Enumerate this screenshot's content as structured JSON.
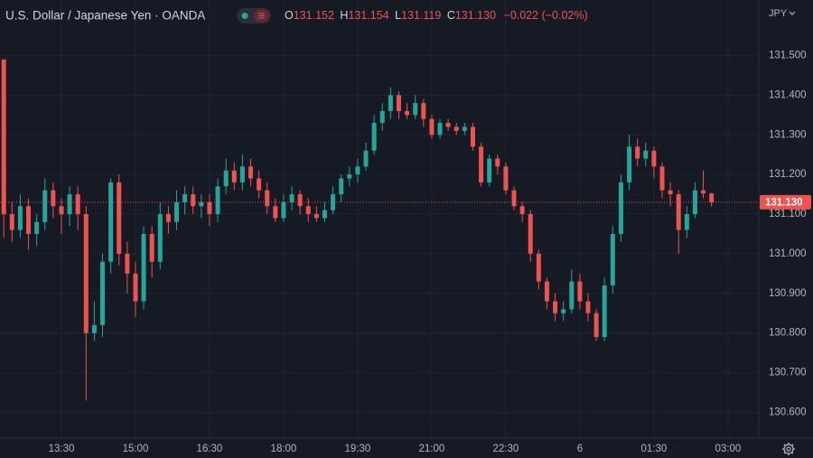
{
  "chart_data": {
    "type": "candlestick",
    "title": "U.S. Dollar / Japanese Yen · OANDA",
    "currency": "JPY",
    "legend": {
      "open_label": "O",
      "open": "131.152",
      "high_label": "H",
      "high": "131.154",
      "low_label": "L",
      "low": "131.119",
      "close_label": "C",
      "close": "131.130",
      "change": "−0.022 (−0.02%)"
    },
    "up_color": "#26a69a",
    "down_color": "#ef5350",
    "open": [
      131.49,
      131.1,
      131.06,
      131.12,
      131.05,
      131.08,
      131.16,
      131.12,
      131.1,
      131.15,
      131.1,
      130.8,
      130.82,
      130.98,
      131.18,
      131.0,
      130.95,
      130.88,
      131.05,
      130.98,
      131.1,
      131.08,
      131.13,
      131.15,
      131.12,
      131.13,
      131.1,
      131.17,
      131.21,
      131.18,
      131.22,
      131.19,
      131.16,
      131.12,
      131.09,
      131.13,
      131.15,
      131.12,
      131.1,
      131.09,
      131.11,
      131.15,
      131.19,
      131.2,
      131.22,
      131.26,
      131.33,
      131.36,
      131.4,
      131.36,
      131.35,
      131.38,
      131.34,
      131.3,
      131.33,
      131.32,
      131.31,
      131.32,
      131.27,
      131.18,
      131.24,
      131.22,
      131.16,
      131.12,
      131.1,
      131.0,
      130.93,
      130.88,
      130.85,
      130.86,
      130.93,
      130.88,
      130.85,
      130.79,
      130.92,
      131.05,
      131.18,
      131.27,
      131.24,
      131.26,
      131.22,
      131.16,
      131.15,
      131.06,
      131.1,
      131.16,
      131.152
    ],
    "high": [
      131.49,
      131.13,
      131.15,
      131.14,
      131.1,
      131.19,
      131.18,
      131.14,
      131.17,
      131.17,
      131.12,
      130.88,
      131.0,
      131.19,
      131.2,
      131.03,
      130.98,
      131.07,
      131.07,
      131.13,
      131.12,
      131.16,
      131.17,
      131.17,
      131.15,
      131.15,
      131.19,
      131.24,
      131.23,
      131.25,
      131.24,
      131.21,
      131.18,
      131.14,
      131.15,
      131.17,
      131.16,
      131.14,
      131.12,
      131.13,
      131.17,
      131.2,
      131.22,
      131.24,
      131.28,
      131.35,
      131.38,
      131.42,
      131.41,
      131.38,
      131.4,
      131.39,
      131.35,
      131.34,
      131.34,
      131.33,
      131.33,
      131.33,
      131.28,
      131.25,
      131.25,
      131.23,
      131.17,
      131.13,
      131.11,
      131.01,
      130.94,
      130.9,
      130.88,
      130.96,
      130.95,
      130.9,
      130.86,
      130.94,
      131.07,
      131.2,
      131.3,
      131.29,
      131.28,
      131.27,
      131.23,
      131.18,
      131.16,
      131.12,
      131.18,
      131.21,
      131.154
    ],
    "low": [
      131.04,
      131.03,
      131.04,
      131.01,
      131.02,
      131.06,
      131.09,
      131.05,
      131.07,
      131.06,
      130.63,
      130.78,
      130.79,
      130.95,
      130.97,
      130.9,
      130.84,
      130.86,
      130.94,
      130.96,
      131.05,
      131.06,
      131.1,
      131.1,
      131.09,
      131.07,
      131.08,
      131.15,
      131.16,
      131.16,
      131.17,
      131.14,
      131.1,
      131.08,
      131.08,
      131.11,
      131.1,
      131.08,
      131.08,
      131.08,
      131.1,
      131.13,
      131.17,
      131.18,
      131.21,
      131.25,
      131.31,
      131.34,
      131.34,
      131.34,
      131.34,
      131.32,
      131.29,
      131.29,
      131.31,
      131.3,
      131.3,
      131.26,
      131.17,
      131.17,
      131.2,
      131.15,
      131.11,
      131.08,
      130.98,
      130.91,
      130.86,
      130.83,
      130.83,
      130.85,
      130.86,
      130.83,
      130.78,
      130.78,
      130.9,
      131.03,
      131.16,
      131.22,
      131.22,
      131.19,
      131.14,
      131.12,
      131.0,
      131.04,
      131.09,
      131.14,
      131.119
    ],
    "close": [
      131.1,
      131.06,
      131.12,
      131.05,
      131.08,
      131.16,
      131.12,
      131.1,
      131.15,
      131.1,
      130.8,
      130.82,
      130.98,
      131.18,
      131.0,
      130.95,
      130.88,
      131.05,
      130.98,
      131.1,
      131.08,
      131.13,
      131.15,
      131.12,
      131.13,
      131.1,
      131.17,
      131.21,
      131.18,
      131.22,
      131.19,
      131.16,
      131.12,
      131.09,
      131.13,
      131.15,
      131.12,
      131.1,
      131.09,
      131.11,
      131.15,
      131.19,
      131.2,
      131.22,
      131.26,
      131.33,
      131.36,
      131.4,
      131.36,
      131.35,
      131.38,
      131.34,
      131.3,
      131.33,
      131.32,
      131.31,
      131.32,
      131.27,
      131.18,
      131.24,
      131.22,
      131.16,
      131.12,
      131.1,
      131.0,
      130.93,
      130.88,
      130.85,
      130.86,
      130.93,
      130.88,
      130.85,
      130.79,
      130.92,
      131.05,
      131.18,
      131.27,
      131.24,
      131.26,
      131.22,
      131.16,
      131.15,
      131.06,
      131.1,
      131.16,
      131.152,
      131.13
    ],
    "last_price": {
      "value": 131.13,
      "label": "131.130"
    },
    "ylim": [
      130.535,
      131.64
    ],
    "yticks": [
      {
        "value": 131.5,
        "label": "131.500"
      },
      {
        "value": 131.4,
        "label": "131.400"
      },
      {
        "value": 131.3,
        "label": "131.300"
      },
      {
        "value": 131.2,
        "label": "131.200"
      },
      {
        "value": 131.1,
        "label": "131.100"
      },
      {
        "value": 131.0,
        "label": "131.000"
      },
      {
        "value": 130.9,
        "label": "130.900"
      },
      {
        "value": 130.8,
        "label": "130.800"
      },
      {
        "value": 130.7,
        "label": "130.700"
      },
      {
        "value": 130.6,
        "label": "130.600"
      }
    ],
    "xticks": [
      {
        "value": 7,
        "label": "13:30"
      },
      {
        "value": 16,
        "label": "15:00"
      },
      {
        "value": 25,
        "label": "16:30"
      },
      {
        "value": 34,
        "label": "18:00"
      },
      {
        "value": 43,
        "label": "19:30"
      },
      {
        "value": 52,
        "label": "21:00"
      },
      {
        "value": 61,
        "label": "22:30"
      },
      {
        "value": 70,
        "label": "6"
      },
      {
        "value": 79,
        "label": "01:30"
      },
      {
        "value": 88,
        "label": "03:00"
      }
    ],
    "grid": true
  }
}
